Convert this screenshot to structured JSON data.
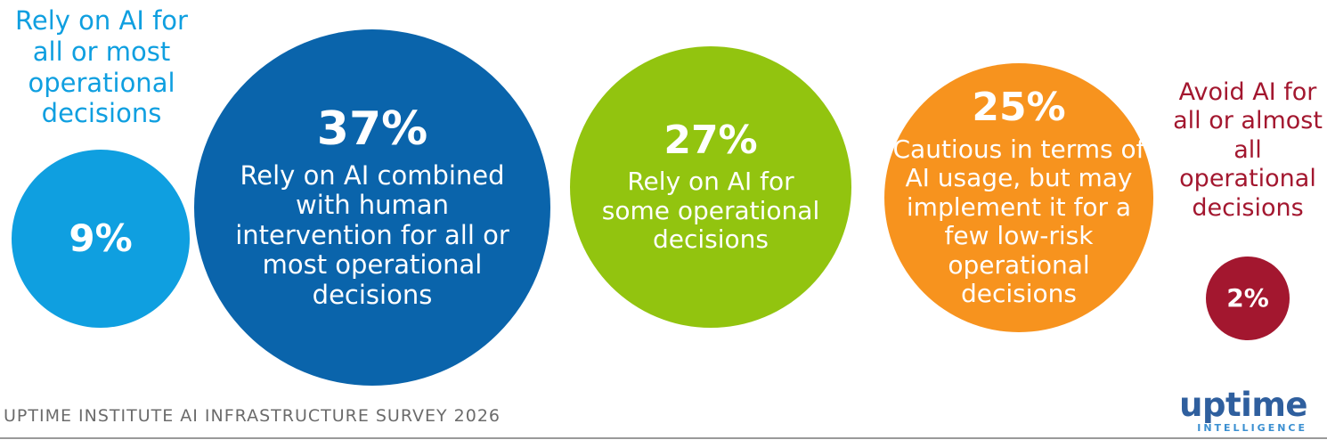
{
  "chart_data": {
    "type": "bubble",
    "title": "",
    "series": [
      {
        "value": 9,
        "value_label": "9%",
        "label": "Rely on AI for all or most operational decisions",
        "color": "#0f9fe0",
        "label_position": "outside"
      },
      {
        "value": 37,
        "value_label": "37%",
        "label": "Rely on AI combined with human intervention for all or most operational decisions",
        "color": "#0a64ab",
        "label_position": "inside"
      },
      {
        "value": 27,
        "value_label": "27%",
        "label": "Rely on AI for some operational decisions",
        "color": "#92c40f",
        "label_position": "inside"
      },
      {
        "value": 25,
        "value_label": "25%",
        "label": "Cautious in terms of AI usage, but may implement it for a few low-risk operational decisions",
        "color": "#f7931e",
        "label_position": "inside"
      },
      {
        "value": 2,
        "value_label": "2%",
        "label": "Avoid AI for all or almost all operational decisions",
        "color": "#a3172f",
        "label_position": "outside"
      }
    ]
  },
  "footer": {
    "source": "UPTIME INSTITUTE AI INFRASTRUCTURE SURVEY 2026"
  },
  "logo": {
    "name": "uptime",
    "sub": "INTELLIGENCE"
  }
}
